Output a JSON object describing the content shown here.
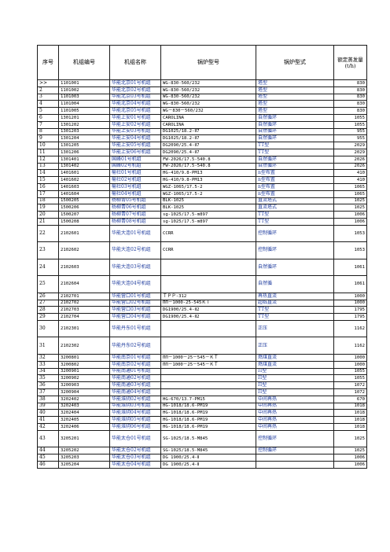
{
  "headers": [
    "序号",
    "机组编号",
    "机组名称",
    "锅炉型号",
    "锅炉型式",
    "额定蒸发量(t/h)"
  ],
  "rows": [
    {
      "seq": ">>",
      "code": "1101001",
      "name": "华能北京01号机组",
      "model": "WG-830-560/232",
      "type": "塔型",
      "cap": "830",
      "h": "r"
    },
    {
      "seq": "2",
      "code": "1101002",
      "name": "华能北京02号机组",
      "model": "WG-830-560/232",
      "type": "塔型",
      "cap": "830",
      "h": "r"
    },
    {
      "seq": "3",
      "code": "1101003",
      "name": "华能北京03号机组",
      "model": "WG-830-560/232",
      "type": "塔型",
      "cap": "830",
      "h": "r"
    },
    {
      "seq": "4",
      "code": "1101004",
      "name": "华能北京04号机组",
      "model": "WG-830-560/232",
      "type": "塔型",
      "cap": "830",
      "h": "r"
    },
    {
      "seq": "5",
      "code": "1101005",
      "name": "华能北京05号机组",
      "model": "WG－830－560/232",
      "type": "塔型",
      "cap": "830",
      "h": "r"
    },
    {
      "seq": "6",
      "code": "1301201",
      "name": "华能上安01号机组",
      "model": "CAROLINA",
      "type": "自然循环",
      "cap": "1055",
      "h": "r"
    },
    {
      "seq": "7",
      "code": "1301202",
      "name": "华能上安02号机组",
      "model": "CAROLINA",
      "type": "自然循环",
      "cap": "1055",
      "h": "r"
    },
    {
      "seq": "8",
      "code": "1301203",
      "name": "华能上安03号机组",
      "model": "DG1025/18.2-Ⅱ7",
      "type": "自然循环",
      "cap": "955",
      "h": "r"
    },
    {
      "seq": "9",
      "code": "1301204",
      "name": "华能上安04号机组",
      "model": "DG1025/18.2-Ⅱ7",
      "type": "自然循环",
      "cap": "955",
      "h": "r"
    },
    {
      "seq": "10",
      "code": "1301205",
      "name": "华能上安05号机组",
      "model": "DG2090/25.4-Ⅱ7",
      "type": "TT型",
      "cap": "2029",
      "h": "r"
    },
    {
      "seq": "11",
      "code": "1301206",
      "name": "华能上安06号机组",
      "model": "DG2090/25.4-Ⅱ7",
      "type": "TT型",
      "cap": "2029",
      "h": "r"
    },
    {
      "seq": "12",
      "code": "1301401",
      "name": "国峰01号机组",
      "model": "FW-2026/17.5-540.8",
      "type": "自然循环",
      "cap": "2026",
      "h": "r"
    },
    {
      "seq": "13",
      "code": "1301402",
      "name": "国峰02号机组",
      "model": "FW-2026/17.5-540.8",
      "type": "自然循环",
      "cap": "2026",
      "h": "r"
    },
    {
      "seq": "14",
      "code": "1401601",
      "name": "榆社01号机组",
      "model": "HG-410/9.8-PM13",
      "type": "n型布置",
      "cap": "410",
      "h": "r"
    },
    {
      "seq": "15",
      "code": "1401602",
      "name": "榆社02号机组",
      "model": "HG-410/9.8-PM13",
      "type": "n型布置",
      "cap": "410",
      "h": "r"
    },
    {
      "seq": "16",
      "code": "1401603",
      "name": "榆社03号机组",
      "model": "WGZ-1065/17.5-2",
      "type": "n型布置",
      "cap": "1065",
      "h": "r"
    },
    {
      "seq": "17",
      "code": "1401604",
      "name": "榆社04号机组",
      "model": "WGZ-1065/17.5-2",
      "type": "n型布置",
      "cap": "1065",
      "h": "r"
    },
    {
      "seq": "18",
      "code": "1500205",
      "name": "杨柳青05号机组",
      "model": "BLK-1025",
      "type": "直流塔式",
      "cap": "1025",
      "h": "r"
    },
    {
      "seq": "19",
      "code": "1500206",
      "name": "杨柳青06号机组",
      "model": "BLK-1025",
      "type": "直流塔式",
      "cap": "1025",
      "h": "r"
    },
    {
      "seq": "20",
      "code": "1500207",
      "name": "杨柳青07号机组",
      "model": "sg-1025/17.5-m897",
      "type": "TT型",
      "cap": "1006",
      "h": "r"
    },
    {
      "seq": "21",
      "code": "1500208",
      "name": "杨柳青08号机组",
      "model": "sg-1025/17.5-m897",
      "type": "TT型",
      "cap": "1006",
      "h": "r"
    },
    {
      "seq": "22",
      "code": "2102601",
      "name": "华能大连01号机组",
      "model": "CCRR",
      "type": "控制循环",
      "cap": "1053",
      "h": "t"
    },
    {
      "seq": "23",
      "code": "2102602",
      "name": "华能大连02号机组",
      "model": "CCRR",
      "type": "控制循环",
      "cap": "1053",
      "h": "t"
    },
    {
      "seq": "24",
      "code": "2102603",
      "name": "华能大连03号机组",
      "model": "",
      "type": "自然循环",
      "cap": "1061",
      "h": "t"
    },
    {
      "seq": "25",
      "code": "2102604",
      "name": "华能大连04号机组",
      "model": "",
      "type": "自然循",
      "cap": "1061",
      "h": "t"
    },
    {
      "seq": "26",
      "code": "2102701",
      "name": "华能营口01号机组",
      "model": "ＴＰＰ-312",
      "type": "再热直流",
      "cap": "1000",
      "h": "r"
    },
    {
      "seq": "27",
      "code": "2102702",
      "name": "华能营口02号机组",
      "model": "ПП－1000-25-545ＫＴ",
      "type": "超临直流",
      "cap": "1000",
      "h": "r"
    },
    {
      "seq": "28",
      "code": "2102703",
      "name": "华能营口03号机组",
      "model": "DG1900/25.4-Ⅱ2",
      "type": "TT型",
      "cap": "1795",
      "h": "r"
    },
    {
      "seq": "29",
      "code": "2102704",
      "name": "华能营口04号机组",
      "model": "DG1900/25.4-Ⅱ2",
      "type": "TT型",
      "cap": "1795",
      "h": "r"
    },
    {
      "seq": "30",
      "code": "2102301",
      "name": "华能丹东01号机组",
      "model": "",
      "type": "正压",
      "cap": "1162",
      "h": "t"
    },
    {
      "seq": "31",
      "code": "2102302",
      "name": "华能丹东02号机组",
      "model": "",
      "type": "正压",
      "cap": "1162",
      "h": "t"
    },
    {
      "seq": "32",
      "code": "3200801",
      "name": "华能南京01号机组",
      "model": "ПП－1000－25－545－ＫＴ",
      "type": "燃煤直流",
      "cap": "1000",
      "h": "r"
    },
    {
      "seq": "33",
      "code": "3200802",
      "name": "华能南京02号机组",
      "model": "ПП－1000－25－545－ＫＴ",
      "type": "燃煤直流",
      "cap": "1000",
      "h": "r"
    },
    {
      "seq": "34",
      "code": "3200901",
      "name": "华能南通01号机组",
      "model": "",
      "type": "Π型",
      "cap": "1055",
      "h": "r"
    },
    {
      "seq": "35",
      "code": "3200902",
      "name": "华能南通02号机组",
      "model": "",
      "type": "Π型",
      "cap": "1055",
      "h": "r"
    },
    {
      "seq": "36",
      "code": "3200903",
      "name": "华能南通03号机组",
      "model": "",
      "type": "Π型",
      "cap": "1072",
      "h": "r"
    },
    {
      "seq": "37",
      "code": "3200904",
      "name": "华能南通04号机组",
      "model": "",
      "type": "Π型",
      "cap": "1072",
      "h": "r"
    },
    {
      "seq": "38",
      "code": "3202402",
      "name": "华能淮阴02号机组",
      "model": "HG-670/13.7-PM15",
      "type": "中间再热",
      "cap": "670",
      "h": "r"
    },
    {
      "seq": "39",
      "code": "3202403",
      "name": "华能淮阴03号机组",
      "model": "HG-1018/18.6-PM19",
      "type": "中间再热",
      "cap": "1018",
      "h": "r"
    },
    {
      "seq": "40",
      "code": "3202404",
      "name": "华能淮阴04号机组",
      "model": "HG-1018/18.6-PM19",
      "type": "中间再热",
      "cap": "1018",
      "h": "r"
    },
    {
      "seq": "41",
      "code": "3202405",
      "name": "华能淮阴05号机组",
      "model": "HG-1018/18.6-PM19",
      "type": "中间再热",
      "cap": "1018",
      "h": "r"
    },
    {
      "seq": "42",
      "code": "3202406",
      "name": "华能淮阴06号机组",
      "model": "HG-1018/18.6-PM19",
      "type": "中间再热",
      "cap": "1018",
      "h": "r"
    },
    {
      "seq": "43",
      "code": "3205201",
      "name": "华能太仓01号机组",
      "model": "SG-1025/18.5-M845",
      "type": "控制循环",
      "cap": "1025",
      "h": "t"
    },
    {
      "seq": "44",
      "code": "3205202",
      "name": "华能太仓02号机组",
      "model": "SG-1025/18.5-M845",
      "type": "控制循环",
      "cap": "1025",
      "h": "r"
    },
    {
      "seq": "45",
      "code": "3205203",
      "name": "华能太仓03号机组",
      "model": "DG 1900/25.4-Ⅱ",
      "type": "",
      "cap": "1006",
      "h": "r"
    },
    {
      "seq": "46",
      "code": "3205204",
      "name": "华能太仓04号机组",
      "model": "DG 1900/25.4-Ⅱ",
      "type": "",
      "cap": "1006",
      "h": "r"
    }
  ]
}
